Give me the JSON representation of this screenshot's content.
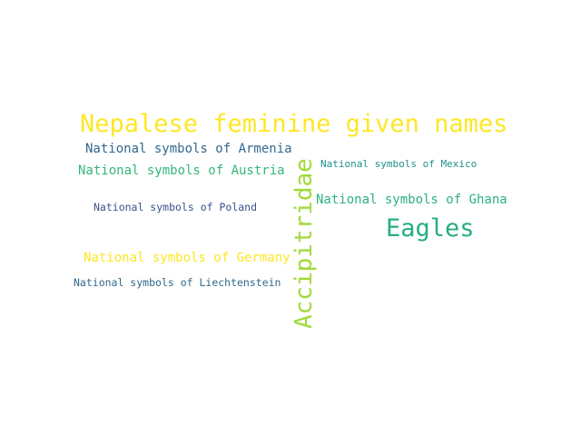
{
  "word_cloud": {
    "words": [
      {
        "text": "Nepalese feminine given names",
        "color": "#fde725"
      },
      {
        "text": "National symbols of Armenia",
        "color": "#31688e"
      },
      {
        "text": "National symbols of Austria",
        "color": "#35b779"
      },
      {
        "text": "National symbols of Mexico",
        "color": "#21918c"
      },
      {
        "text": "Accipitridae",
        "color": "#a0da39"
      },
      {
        "text": "National symbols of Poland",
        "color": "#3b528b"
      },
      {
        "text": "National symbols of Ghana",
        "color": "#2db27d"
      },
      {
        "text": "Eagles",
        "color": "#28ae80"
      },
      {
        "text": "National symbols of Germany",
        "color": "#fde725"
      },
      {
        "text": "National symbols of Liechtenstein",
        "color": "#31688e"
      }
    ]
  }
}
